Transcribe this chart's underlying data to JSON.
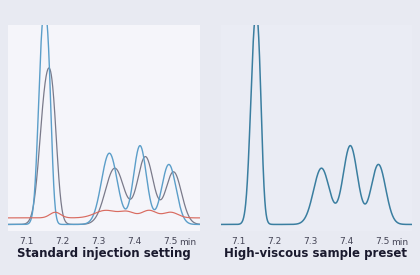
{
  "background_color": "#e8eaf2",
  "left_panel_bg": "#f5f5fa",
  "right_panel_bg": "#eaecf4",
  "x_min": 7.05,
  "x_max": 7.58,
  "x_ticks": [
    7.1,
    7.2,
    7.3,
    7.4,
    7.5
  ],
  "title_left": "Standard injection setting",
  "title_right": "High-viscous sample preset",
  "title_fontsize": 8.5,
  "tick_fontsize": 6.5,
  "line_blue": "#5b9ec9",
  "line_gray": "#7a7a8a",
  "line_red": "#d96b60",
  "line_dark_blue": "#3a7ea0"
}
